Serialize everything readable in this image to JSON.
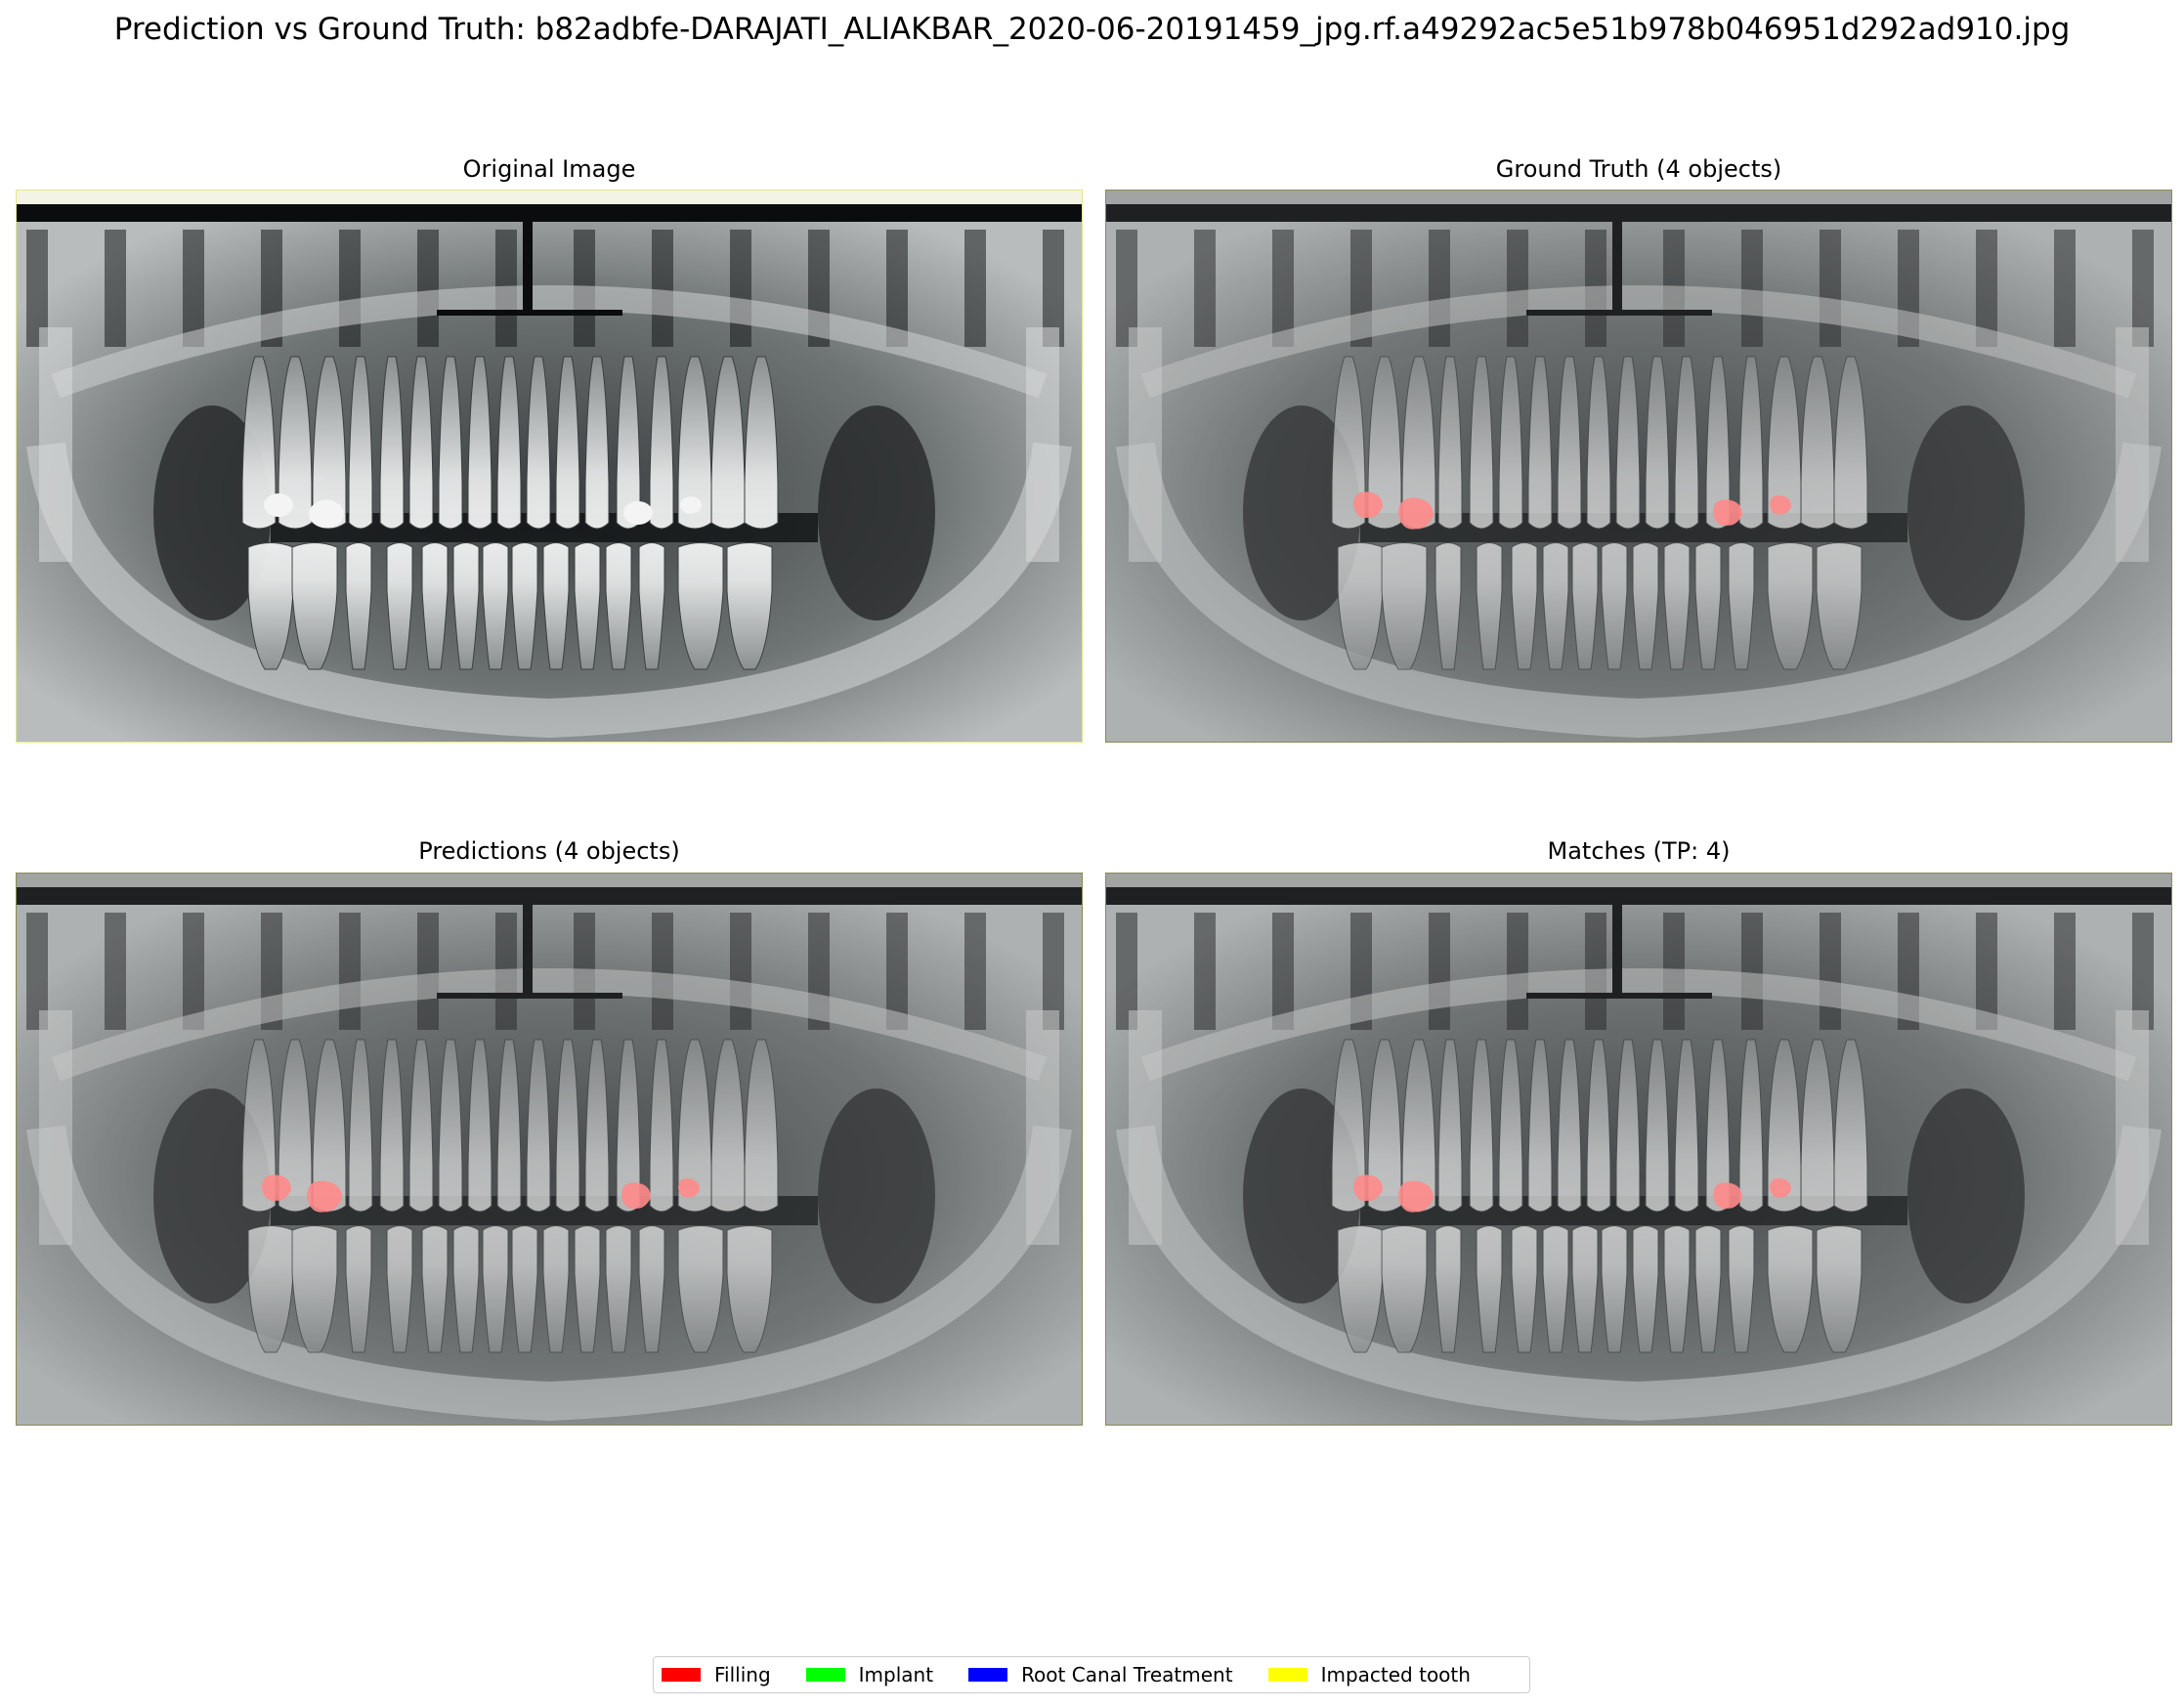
{
  "title": "Prediction vs Ground Truth: b82adbfe-DARAJATI_ALIAKBAR_2020-06-20191459_jpg.rf.a49292ac5e51b978b046951d292ad910.jpg",
  "panels": {
    "original": {
      "title": "Original Image"
    },
    "ground_truth": {
      "title": "Ground Truth (4 objects)"
    },
    "predictions": {
      "title": "Predictions (4 objects)"
    },
    "matches": {
      "title": "Matches (TP: 4)"
    }
  },
  "legend": {
    "items": [
      {
        "label": "Filling",
        "color": "#ff0000"
      },
      {
        "label": "Implant",
        "color": "#00ff00"
      },
      {
        "label": "Root Canal Treatment",
        "color": "#0000ff"
      },
      {
        "label": "Impacted tooth",
        "color": "#ffff00"
      }
    ]
  },
  "colors": {
    "mask_fill": "#ff8a8a",
    "xray_dark": "#0a0c0e",
    "xray_bone": "#cfd2d2",
    "filling_bright": "#f4f4f4"
  }
}
